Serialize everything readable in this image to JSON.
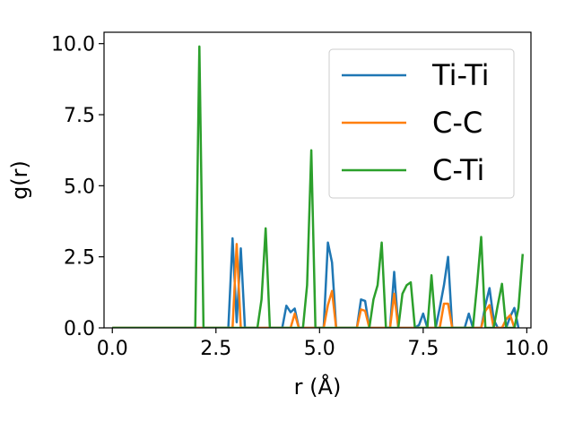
{
  "chart_data": {
    "type": "line",
    "title": "",
    "xlabel": "r (Å)",
    "ylabel": "g(r)",
    "xlim": [
      -0.2,
      10.1
    ],
    "ylim": [
      0,
      10.4
    ],
    "x_ticks": [
      0.0,
      2.5,
      5.0,
      7.5,
      10.0
    ],
    "x_tick_labels": [
      "0.0",
      "2.5",
      "5.0",
      "7.5",
      "10.0"
    ],
    "y_ticks": [
      0.0,
      2.5,
      5.0,
      7.5,
      10.0
    ],
    "y_tick_labels": [
      "0.0",
      "2.5",
      "5.0",
      "7.5",
      "10.0"
    ],
    "grid": false,
    "legend_position": "top-right",
    "series": [
      {
        "name": "Ti-Ti",
        "color": "#1f77b4",
        "points": [
          [
            0,
            0
          ],
          [
            2.8,
            0
          ],
          [
            2.9,
            3.15
          ],
          [
            3.0,
            0.2
          ],
          [
            3.1,
            2.8
          ],
          [
            3.2,
            0
          ],
          [
            4.1,
            0
          ],
          [
            4.2,
            0.78
          ],
          [
            4.3,
            0.55
          ],
          [
            4.4,
            0.68
          ],
          [
            4.5,
            0
          ],
          [
            5.1,
            0
          ],
          [
            5.2,
            3.0
          ],
          [
            5.3,
            2.3
          ],
          [
            5.4,
            0
          ],
          [
            5.9,
            0
          ],
          [
            6.0,
            1.0
          ],
          [
            6.1,
            0.95
          ],
          [
            6.2,
            0
          ],
          [
            6.7,
            0
          ],
          [
            6.8,
            1.97
          ],
          [
            6.9,
            0
          ],
          [
            7.3,
            0
          ],
          [
            7.4,
            0.1
          ],
          [
            7.5,
            0.5
          ],
          [
            7.6,
            0
          ],
          [
            7.8,
            0
          ],
          [
            7.9,
            0.7
          ],
          [
            8.0,
            1.5
          ],
          [
            8.1,
            2.5
          ],
          [
            8.2,
            0
          ],
          [
            8.5,
            0
          ],
          [
            8.6,
            0.5
          ],
          [
            8.7,
            0
          ],
          [
            8.9,
            0
          ],
          [
            9.0,
            0.8
          ],
          [
            9.1,
            1.4
          ],
          [
            9.2,
            0.3
          ],
          [
            9.3,
            0
          ],
          [
            9.5,
            0
          ],
          [
            9.6,
            0.4
          ],
          [
            9.7,
            0.7
          ],
          [
            9.8,
            0
          ]
        ]
      },
      {
        "name": "C-C",
        "color": "#ff7f0e",
        "points": [
          [
            0,
            0
          ],
          [
            2.9,
            0
          ],
          [
            3.0,
            2.95
          ],
          [
            3.1,
            0
          ],
          [
            4.3,
            0
          ],
          [
            4.4,
            0.5
          ],
          [
            4.5,
            0
          ],
          [
            5.1,
            0
          ],
          [
            5.2,
            0.8
          ],
          [
            5.3,
            1.3
          ],
          [
            5.4,
            0
          ],
          [
            5.9,
            0
          ],
          [
            6.0,
            0.65
          ],
          [
            6.1,
            0.6
          ],
          [
            6.2,
            0
          ],
          [
            6.7,
            0
          ],
          [
            6.8,
            1.2
          ],
          [
            6.9,
            0
          ],
          [
            7.9,
            0
          ],
          [
            8.0,
            0.85
          ],
          [
            8.1,
            0.85
          ],
          [
            8.2,
            0
          ],
          [
            8.9,
            0
          ],
          [
            9.0,
            0.6
          ],
          [
            9.1,
            0.8
          ],
          [
            9.2,
            0
          ],
          [
            9.4,
            0
          ],
          [
            9.5,
            0.3
          ],
          [
            9.6,
            0.45
          ],
          [
            9.7,
            0
          ]
        ]
      },
      {
        "name": "C-Ti",
        "color": "#2ca02c",
        "points": [
          [
            0,
            0
          ],
          [
            2.0,
            0
          ],
          [
            2.1,
            9.9
          ],
          [
            2.2,
            0
          ],
          [
            3.5,
            0
          ],
          [
            3.6,
            1.0
          ],
          [
            3.7,
            3.5
          ],
          [
            3.8,
            0
          ],
          [
            4.6,
            0
          ],
          [
            4.7,
            1.5
          ],
          [
            4.8,
            6.25
          ],
          [
            4.9,
            0
          ],
          [
            6.2,
            0
          ],
          [
            6.3,
            1.0
          ],
          [
            6.4,
            1.5
          ],
          [
            6.5,
            3.0
          ],
          [
            6.6,
            0
          ],
          [
            6.9,
            0
          ],
          [
            7.0,
            1.2
          ],
          [
            7.1,
            1.5
          ],
          [
            7.2,
            1.6
          ],
          [
            7.3,
            0
          ],
          [
            7.6,
            0
          ],
          [
            7.7,
            1.85
          ],
          [
            7.8,
            0
          ],
          [
            8.7,
            0
          ],
          [
            8.8,
            1.5
          ],
          [
            8.9,
            3.2
          ],
          [
            9.0,
            0
          ],
          [
            9.2,
            0
          ],
          [
            9.3,
            0.8
          ],
          [
            9.4,
            1.55
          ],
          [
            9.5,
            0
          ],
          [
            9.7,
            0
          ],
          [
            9.8,
            0.7
          ],
          [
            9.9,
            2.6
          ]
        ]
      }
    ]
  }
}
